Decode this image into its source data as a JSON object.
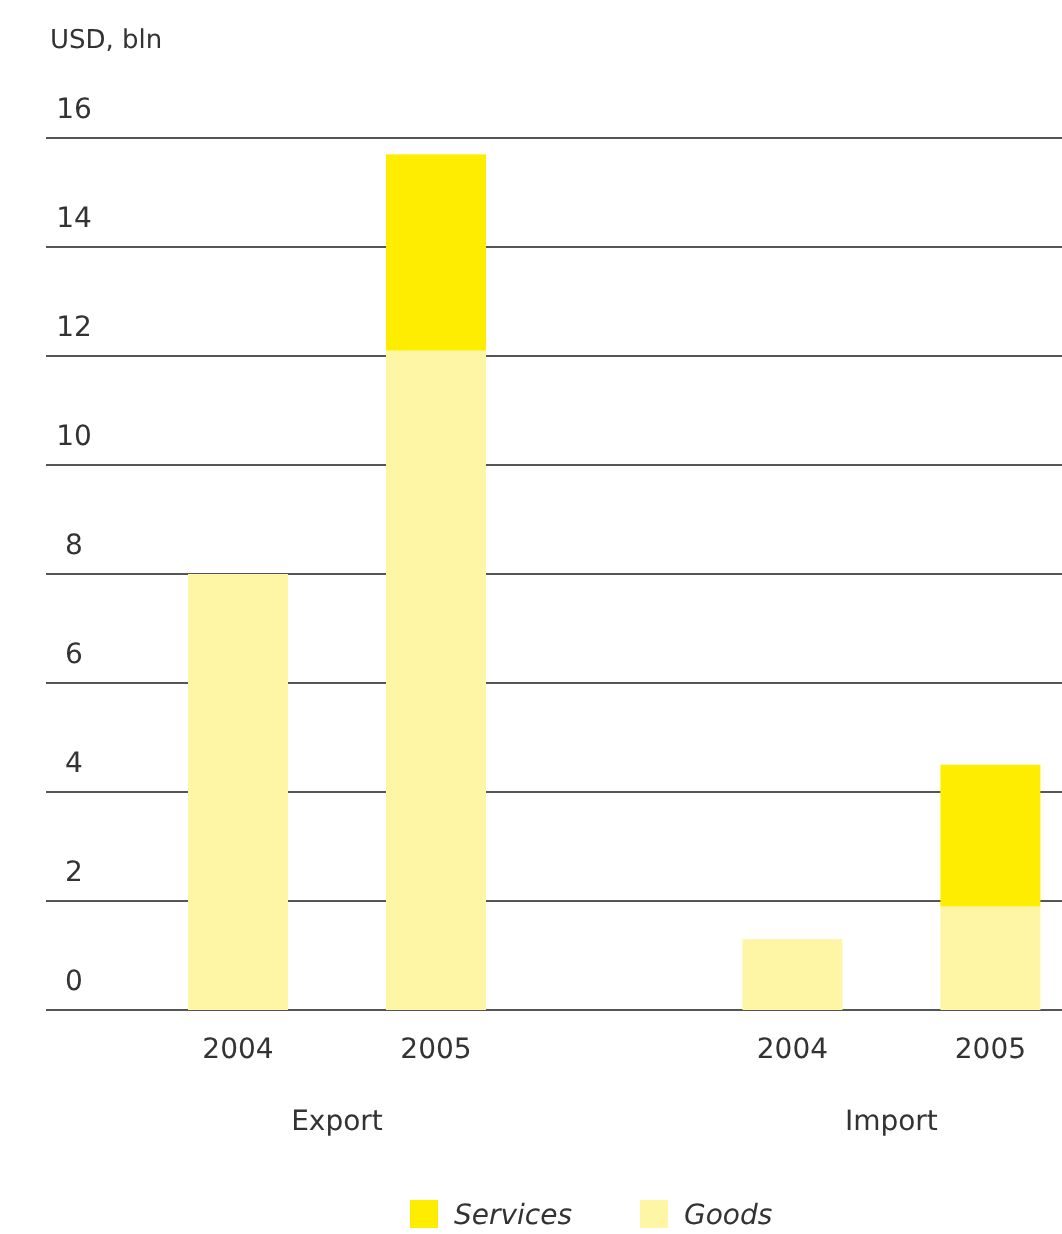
{
  "chart_data": {
    "type": "bar",
    "ylabel": "USD, bln",
    "categories": [
      "2004",
      "2005",
      "2004",
      "2005"
    ],
    "stacked": true,
    "series": [
      {
        "name": "Goods",
        "color": "#fef5a5",
        "values": [
          8.0,
          12.1,
          1.3,
          1.9
        ]
      },
      {
        "name": "Services",
        "color": "#ffed00",
        "values": [
          null,
          3.6,
          null,
          2.6
        ]
      }
    ],
    "ylim": [
      0,
      16
    ],
    "yticks": [
      0,
      2,
      4,
      6,
      8,
      10,
      12,
      14,
      16
    ],
    "grid": "y",
    "legend": "bottom",
    "annotations": [
      "Export",
      "Import"
    ]
  }
}
